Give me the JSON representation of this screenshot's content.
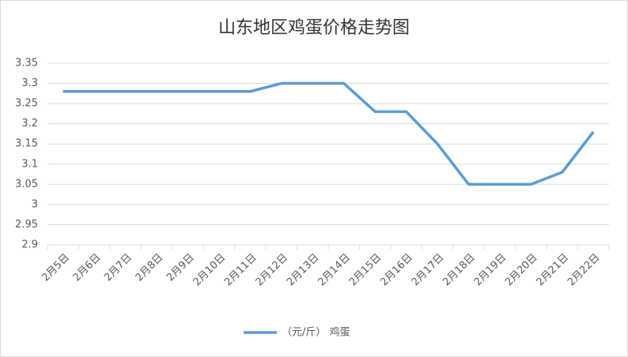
{
  "chart_data": {
    "type": "line",
    "title": "山东地区鸡蛋价格走势图",
    "categories": [
      "2月5日",
      "2月6日",
      "2月7日",
      "2月8日",
      "2月9日",
      "2月10日",
      "2月11日",
      "2月12日",
      "2月13日",
      "2月14日",
      "2月15日",
      "2月16日",
      "2月17日",
      "2月18日",
      "2月19日",
      "2月20日",
      "2月21日",
      "2月22日"
    ],
    "series": [
      {
        "name": "（元/斤） 鸡蛋",
        "color": "#5b9bd5",
        "values": [
          3.28,
          3.28,
          3.28,
          3.28,
          3.28,
          3.28,
          3.28,
          3.3,
          3.3,
          3.3,
          3.23,
          3.23,
          3.15,
          3.05,
          3.05,
          3.05,
          3.08,
          3.18
        ]
      }
    ],
    "ylim": [
      2.9,
      3.35
    ],
    "yticks": [
      2.9,
      2.95,
      3,
      3.05,
      3.1,
      3.15,
      3.2,
      3.25,
      3.3,
      3.35
    ],
    "grid": true,
    "legend": "bottom"
  }
}
